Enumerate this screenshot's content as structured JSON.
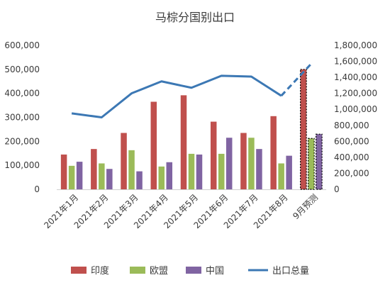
{
  "chart_data": {
    "type": "bar",
    "title": "马棕分国别出口",
    "categories": [
      "2021年1月",
      "2021年2月",
      "2021年3月",
      "2021年4月",
      "2021年5月",
      "2021年6月",
      "2021年7月",
      "2021年8月",
      "9月预测"
    ],
    "series": [
      {
        "name": "印度",
        "axis": "left",
        "color": "#c0504d",
        "values": [
          145000,
          168000,
          235000,
          365000,
          392000,
          282000,
          235000,
          305000,
          500000
        ]
      },
      {
        "name": "欧盟",
        "axis": "left",
        "color": "#9bbb59",
        "values": [
          98000,
          108000,
          163000,
          95000,
          148000,
          148000,
          215000,
          108000,
          212000
        ]
      },
      {
        "name": "中国",
        "axis": "left",
        "color": "#8064a2",
        "values": [
          115000,
          85000,
          75000,
          113000,
          145000,
          215000,
          168000,
          140000,
          230000
        ]
      },
      {
        "name": "出口总量",
        "type": "line",
        "axis": "right",
        "color": "#3c78b4",
        "values": [
          950000,
          900000,
          1200000,
          1350000,
          1270000,
          1420000,
          1410000,
          1170000,
          1570000
        ]
      }
    ],
    "forecast_index": 8,
    "y_left": {
      "min": 0,
      "max": 600000,
      "ticks": [
        "0",
        "100,000",
        "200,000",
        "300,000",
        "400,000",
        "500,000",
        "600,000"
      ]
    },
    "y_right": {
      "min": 0,
      "max": 1800000,
      "ticks": [
        "0",
        "200,000",
        "400,000",
        "600,000",
        "800,000",
        "1,000,000",
        "1,200,000",
        "1,400,000",
        "1,600,000",
        "1,800,000"
      ]
    },
    "grid": false,
    "legend": "bottom"
  }
}
